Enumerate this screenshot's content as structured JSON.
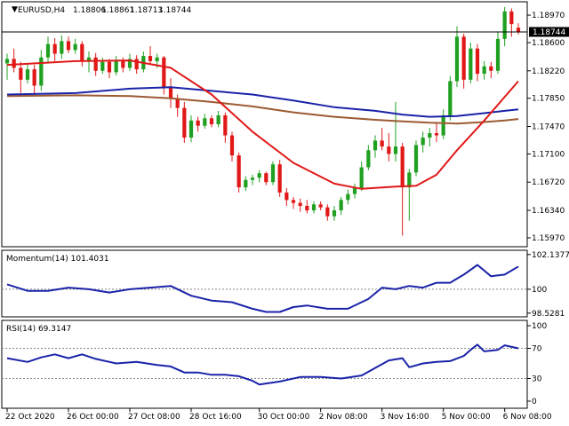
{
  "header": {
    "triangle": "▼",
    "symbol": "EURUSD,H4",
    "open": "1.18806",
    "high": "1.18861",
    "low": "1.18713",
    "close": "1.18744"
  },
  "current_price": "1.18744",
  "colors": {
    "bull": "#20a020",
    "bear": "#e01818",
    "ma_fast": "#e01818",
    "ma_mid": "#1a23a8",
    "ma_slow": "#9c5a32",
    "indicator": "#1a23a8",
    "grid": "#000000",
    "background": "#ffffff"
  },
  "chart_data": [
    {
      "type": "candlestick",
      "panel": "price",
      "title": "EURUSD,H4",
      "ylim": [
        1.1585,
        1.1915
      ],
      "y_ticks": [
        "1.18970",
        "1.18600",
        "1.18220",
        "1.17850",
        "1.17470",
        "1.17100",
        "1.16720",
        "1.16340",
        "1.15970"
      ],
      "candles": [
        {
          "o": 1.1832,
          "h": 1.1845,
          "l": 1.181,
          "c": 1.1838
        },
        {
          "o": 1.1838,
          "h": 1.1852,
          "l": 1.182,
          "c": 1.1826
        },
        {
          "o": 1.1826,
          "h": 1.1834,
          "l": 1.1792,
          "c": 1.181
        },
        {
          "o": 1.181,
          "h": 1.1832,
          "l": 1.1805,
          "c": 1.1824
        },
        {
          "o": 1.1824,
          "h": 1.183,
          "l": 1.1788,
          "c": 1.1802
        },
        {
          "o": 1.1802,
          "h": 1.185,
          "l": 1.1795,
          "c": 1.184
        },
        {
          "o": 1.184,
          "h": 1.1868,
          "l": 1.1832,
          "c": 1.1858
        },
        {
          "o": 1.1858,
          "h": 1.1866,
          "l": 1.1835,
          "c": 1.1845
        },
        {
          "o": 1.1845,
          "h": 1.187,
          "l": 1.1838,
          "c": 1.1862
        },
        {
          "o": 1.1862,
          "h": 1.1868,
          "l": 1.1846,
          "c": 1.185
        },
        {
          "o": 1.185,
          "h": 1.1865,
          "l": 1.1845,
          "c": 1.1858
        },
        {
          "o": 1.1858,
          "h": 1.1862,
          "l": 1.1828,
          "c": 1.1835
        },
        {
          "o": 1.1835,
          "h": 1.1848,
          "l": 1.182,
          "c": 1.184
        },
        {
          "o": 1.184,
          "h": 1.1846,
          "l": 1.1815,
          "c": 1.1822
        },
        {
          "o": 1.1822,
          "h": 1.184,
          "l": 1.1818,
          "c": 1.1834
        },
        {
          "o": 1.1834,
          "h": 1.1838,
          "l": 1.1812,
          "c": 1.182
        },
        {
          "o": 1.182,
          "h": 1.1842,
          "l": 1.1816,
          "c": 1.1836
        },
        {
          "o": 1.1836,
          "h": 1.184,
          "l": 1.182,
          "c": 1.1826
        },
        {
          "o": 1.1826,
          "h": 1.1845,
          "l": 1.1822,
          "c": 1.1838
        },
        {
          "o": 1.1838,
          "h": 1.1843,
          "l": 1.1818,
          "c": 1.1824
        },
        {
          "o": 1.1824,
          "h": 1.1848,
          "l": 1.182,
          "c": 1.1842
        },
        {
          "o": 1.1842,
          "h": 1.1855,
          "l": 1.183,
          "c": 1.1835
        },
        {
          "o": 1.1835,
          "h": 1.1845,
          "l": 1.1826,
          "c": 1.184
        },
        {
          "o": 1.184,
          "h": 1.1842,
          "l": 1.179,
          "c": 1.18
        },
        {
          "o": 1.18,
          "h": 1.1812,
          "l": 1.1772,
          "c": 1.1785
        },
        {
          "o": 1.1785,
          "h": 1.179,
          "l": 1.176,
          "c": 1.1772
        },
        {
          "o": 1.1772,
          "h": 1.178,
          "l": 1.1725,
          "c": 1.1732
        },
        {
          "o": 1.1732,
          "h": 1.1762,
          "l": 1.1726,
          "c": 1.1755
        },
        {
          "o": 1.1755,
          "h": 1.176,
          "l": 1.174,
          "c": 1.1748
        },
        {
          "o": 1.1748,
          "h": 1.1764,
          "l": 1.1744,
          "c": 1.1758
        },
        {
          "o": 1.1758,
          "h": 1.1762,
          "l": 1.1746,
          "c": 1.175
        },
        {
          "o": 1.175,
          "h": 1.1768,
          "l": 1.1746,
          "c": 1.1762
        },
        {
          "o": 1.1762,
          "h": 1.1766,
          "l": 1.1725,
          "c": 1.1735
        },
        {
          "o": 1.1735,
          "h": 1.174,
          "l": 1.17,
          "c": 1.1708
        },
        {
          "o": 1.1708,
          "h": 1.1712,
          "l": 1.1658,
          "c": 1.1665
        },
        {
          "o": 1.1665,
          "h": 1.168,
          "l": 1.166,
          "c": 1.1675
        },
        {
          "o": 1.1675,
          "h": 1.1682,
          "l": 1.1668,
          "c": 1.1678
        },
        {
          "o": 1.1678,
          "h": 1.1688,
          "l": 1.1672,
          "c": 1.1684
        },
        {
          "o": 1.1684,
          "h": 1.1686,
          "l": 1.1668,
          "c": 1.1672
        },
        {
          "o": 1.1672,
          "h": 1.17,
          "l": 1.1668,
          "c": 1.1696
        },
        {
          "o": 1.1696,
          "h": 1.1702,
          "l": 1.1652,
          "c": 1.1658
        },
        {
          "o": 1.1658,
          "h": 1.1664,
          "l": 1.164,
          "c": 1.1648
        },
        {
          "o": 1.1648,
          "h": 1.1652,
          "l": 1.1636,
          "c": 1.1644
        },
        {
          "o": 1.1644,
          "h": 1.165,
          "l": 1.1632,
          "c": 1.164
        },
        {
          "o": 1.164,
          "h": 1.1648,
          "l": 1.163,
          "c": 1.1634
        },
        {
          "o": 1.1634,
          "h": 1.1646,
          "l": 1.163,
          "c": 1.1642
        },
        {
          "o": 1.1642,
          "h": 1.1646,
          "l": 1.1634,
          "c": 1.1638
        },
        {
          "o": 1.1638,
          "h": 1.1642,
          "l": 1.162,
          "c": 1.1626
        },
        {
          "o": 1.1626,
          "h": 1.164,
          "l": 1.162,
          "c": 1.1634
        },
        {
          "o": 1.1634,
          "h": 1.1652,
          "l": 1.1628,
          "c": 1.1648
        },
        {
          "o": 1.1648,
          "h": 1.1662,
          "l": 1.1642,
          "c": 1.1656
        },
        {
          "o": 1.1656,
          "h": 1.167,
          "l": 1.165,
          "c": 1.1664
        },
        {
          "o": 1.1664,
          "h": 1.17,
          "l": 1.166,
          "c": 1.1692
        },
        {
          "o": 1.1692,
          "h": 1.1722,
          "l": 1.1688,
          "c": 1.1715
        },
        {
          "o": 1.1715,
          "h": 1.1735,
          "l": 1.1705,
          "c": 1.1728
        },
        {
          "o": 1.1728,
          "h": 1.1745,
          "l": 1.1715,
          "c": 1.172
        },
        {
          "o": 1.172,
          "h": 1.1738,
          "l": 1.17,
          "c": 1.171
        },
        {
          "o": 1.171,
          "h": 1.178,
          "l": 1.17,
          "c": 1.172
        },
        {
          "o": 1.172,
          "h": 1.1725,
          "l": 1.16,
          "c": 1.1665
        },
        {
          "o": 1.1665,
          "h": 1.169,
          "l": 1.162,
          "c": 1.1685
        },
        {
          "o": 1.1685,
          "h": 1.1728,
          "l": 1.168,
          "c": 1.1722
        },
        {
          "o": 1.1722,
          "h": 1.174,
          "l": 1.1712,
          "c": 1.1732
        },
        {
          "o": 1.1732,
          "h": 1.1745,
          "l": 1.172,
          "c": 1.1738
        },
        {
          "o": 1.1738,
          "h": 1.1752,
          "l": 1.1726,
          "c": 1.1735
        },
        {
          "o": 1.1735,
          "h": 1.177,
          "l": 1.173,
          "c": 1.1762
        },
        {
          "o": 1.1762,
          "h": 1.1815,
          "l": 1.1755,
          "c": 1.1808
        },
        {
          "o": 1.1808,
          "h": 1.1882,
          "l": 1.18,
          "c": 1.1868
        },
        {
          "o": 1.1868,
          "h": 1.1872,
          "l": 1.1798,
          "c": 1.181
        },
        {
          "o": 1.181,
          "h": 1.186,
          "l": 1.1805,
          "c": 1.1852
        },
        {
          "o": 1.1852,
          "h": 1.1858,
          "l": 1.1808,
          "c": 1.1818
        },
        {
          "o": 1.1818,
          "h": 1.1835,
          "l": 1.181,
          "c": 1.1828
        },
        {
          "o": 1.1828,
          "h": 1.1834,
          "l": 1.1812,
          "c": 1.1822
        },
        {
          "o": 1.1822,
          "h": 1.1875,
          "l": 1.1818,
          "c": 1.1865
        },
        {
          "o": 1.1865,
          "h": 1.1908,
          "l": 1.1855,
          "c": 1.1902
        },
        {
          "o": 1.1902,
          "h": 1.1906,
          "l": 1.1868,
          "c": 1.1885
        },
        {
          "o": 1.188,
          "h": 1.1886,
          "l": 1.1871,
          "c": 1.1874
        }
      ],
      "ma_fast": [
        [
          0,
          1.183
        ],
        [
          10,
          1.1835
        ],
        [
          18,
          1.1836
        ],
        [
          24,
          1.1826
        ],
        [
          30,
          1.179
        ],
        [
          36,
          1.174
        ],
        [
          42,
          1.1698
        ],
        [
          48,
          1.167
        ],
        [
          52,
          1.1663
        ],
        [
          57,
          1.1666
        ],
        [
          60,
          1.1667
        ],
        [
          63,
          1.1682
        ],
        [
          66,
          1.1715
        ],
        [
          70,
          1.1755
        ],
        [
          73,
          1.1787
        ],
        [
          75,
          1.1808
        ]
      ],
      "ma_mid": [
        [
          0,
          1.179
        ],
        [
          10,
          1.1792
        ],
        [
          18,
          1.1798
        ],
        [
          24,
          1.18
        ],
        [
          30,
          1.1795
        ],
        [
          36,
          1.179
        ],
        [
          42,
          1.1782
        ],
        [
          48,
          1.1773
        ],
        [
          54,
          1.1768
        ],
        [
          58,
          1.1763
        ],
        [
          62,
          1.176
        ],
        [
          66,
          1.1761
        ],
        [
          70,
          1.1765
        ],
        [
          73,
          1.1768
        ],
        [
          75,
          1.177
        ]
      ],
      "ma_slow": [
        [
          0,
          1.1788
        ],
        [
          10,
          1.1789
        ],
        [
          18,
          1.1788
        ],
        [
          24,
          1.1785
        ],
        [
          30,
          1.178
        ],
        [
          36,
          1.1774
        ],
        [
          42,
          1.1766
        ],
        [
          48,
          1.176
        ],
        [
          54,
          1.1756
        ],
        [
          58,
          1.1754
        ],
        [
          62,
          1.1752
        ],
        [
          66,
          1.1751
        ],
        [
          70,
          1.1753
        ],
        [
          73,
          1.1755
        ],
        [
          75,
          1.1757
        ]
      ]
    },
    {
      "type": "line",
      "panel": "momentum",
      "title": "Momentum(14) 101.4031",
      "ylim": [
        98.3,
        102.4
      ],
      "y_ticks": [
        "102.1377",
        "100",
        "98.5281"
      ],
      "level": 100,
      "values": [
        [
          0,
          100.3
        ],
        [
          3,
          99.9
        ],
        [
          6,
          99.9
        ],
        [
          9,
          100.1
        ],
        [
          12,
          100.0
        ],
        [
          15,
          99.8
        ],
        [
          18,
          100.0
        ],
        [
          21,
          100.1
        ],
        [
          24,
          100.2
        ],
        [
          27,
          99.6
        ],
        [
          30,
          99.3
        ],
        [
          33,
          99.2
        ],
        [
          36,
          98.8
        ],
        [
          38,
          98.6
        ],
        [
          40,
          98.6
        ],
        [
          42,
          98.9
        ],
        [
          44,
          99.0
        ],
        [
          47,
          98.8
        ],
        [
          50,
          98.8
        ],
        [
          53,
          99.4
        ],
        [
          55,
          100.1
        ],
        [
          57,
          100.0
        ],
        [
          59,
          100.2
        ],
        [
          61,
          100.1
        ],
        [
          63,
          100.4
        ],
        [
          65,
          100.4
        ],
        [
          67,
          100.9
        ],
        [
          69,
          101.5
        ],
        [
          71,
          100.8
        ],
        [
          73,
          100.9
        ],
        [
          75,
          101.4
        ]
      ]
    },
    {
      "type": "line",
      "panel": "rsi",
      "title": "RSI(14) 69.3147",
      "ylim": [
        0,
        100
      ],
      "y_ticks": [
        "100",
        "70",
        "30",
        "0"
      ],
      "levels": [
        70,
        30
      ],
      "values": [
        [
          0,
          57
        ],
        [
          3,
          52
        ],
        [
          5,
          58
        ],
        [
          7,
          62
        ],
        [
          9,
          57
        ],
        [
          11,
          62
        ],
        [
          13,
          56
        ],
        [
          16,
          50
        ],
        [
          19,
          52
        ],
        [
          22,
          48
        ],
        [
          24,
          46
        ],
        [
          26,
          38
        ],
        [
          28,
          38
        ],
        [
          30,
          35
        ],
        [
          32,
          35
        ],
        [
          34,
          33
        ],
        [
          36,
          27
        ],
        [
          37,
          22
        ],
        [
          40,
          26
        ],
        [
          43,
          32
        ],
        [
          46,
          32
        ],
        [
          49,
          30
        ],
        [
          52,
          34
        ],
        [
          54,
          44
        ],
        [
          56,
          54
        ],
        [
          58,
          57
        ],
        [
          59,
          45
        ],
        [
          61,
          50
        ],
        [
          63,
          52
        ],
        [
          65,
          53
        ],
        [
          67,
          60
        ],
        [
          68,
          68
        ],
        [
          69,
          75
        ],
        [
          70,
          66
        ],
        [
          72,
          68
        ],
        [
          73,
          74
        ],
        [
          75,
          70
        ]
      ]
    }
  ],
  "time_labels": [
    {
      "i": 0,
      "text": "22 Oct 2020"
    },
    {
      "i": 9,
      "text": "26 Oct 00:00"
    },
    {
      "i": 18,
      "text": "27 Oct 08:00"
    },
    {
      "i": 27,
      "text": "28 Oct 16:00"
    },
    {
      "i": 37,
      "text": "30 Oct 00:00"
    },
    {
      "i": 46,
      "text": "2 Nov 08:00"
    },
    {
      "i": 55,
      "text": "3 Nov 16:00"
    },
    {
      "i": 64,
      "text": "5 Nov 00:00"
    },
    {
      "i": 73,
      "text": "6 Nov 08:00"
    }
  ]
}
